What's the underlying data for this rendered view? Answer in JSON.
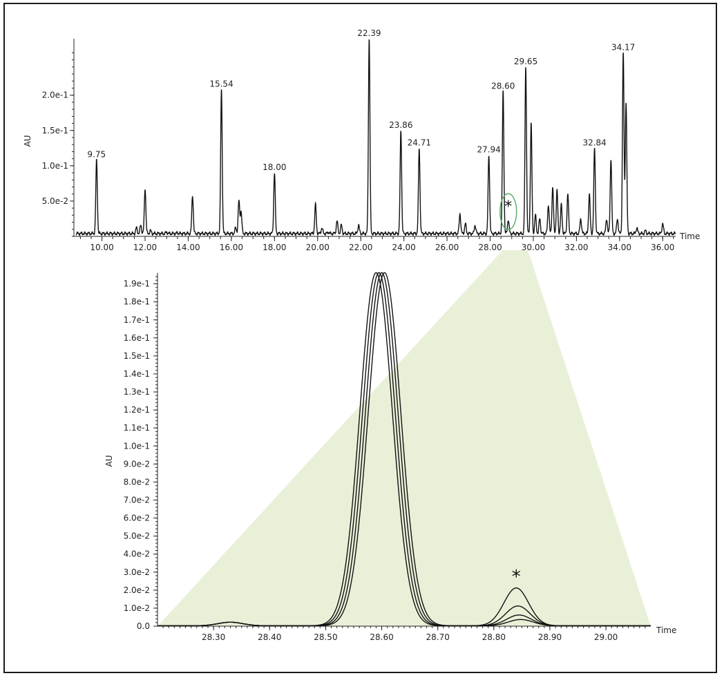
{
  "chart_data": [
    {
      "type": "line",
      "xlabel": "Time",
      "ylabel": "AU",
      "xlim": [
        8.7,
        36.6
      ],
      "ylim": [
        0,
        0.28
      ],
      "xticks": [
        10,
        12,
        14,
        16,
        18,
        20,
        22,
        24,
        26,
        28,
        30,
        32,
        34,
        36
      ],
      "xtick_labels": [
        "10.00",
        "12.00",
        "14.00",
        "16.00",
        "18.00",
        "20.00",
        "22.00",
        "24.00",
        "26.00",
        "28.00",
        "30.00",
        "32.00",
        "34.00",
        "36.00"
      ],
      "yticks": [
        0.05,
        0.1,
        0.15,
        0.2
      ],
      "ytick_labels": [
        "5.0e-2",
        "1.0e-1",
        "1.5e-1",
        "2.0e-1"
      ],
      "baseline": 0.004,
      "peaks": [
        {
          "x": 9.75,
          "y": 0.108,
          "label": "9.75"
        },
        {
          "x": 11.6,
          "y": 0.012
        },
        {
          "x": 11.8,
          "y": 0.016
        },
        {
          "x": 12.0,
          "y": 0.068
        },
        {
          "x": 12.25,
          "y": 0.008
        },
        {
          "x": 13.0,
          "y": 0.006
        },
        {
          "x": 13.5,
          "y": 0.005
        },
        {
          "x": 14.2,
          "y": 0.058
        },
        {
          "x": 15.54,
          "y": 0.208,
          "label": "15.54"
        },
        {
          "x": 16.2,
          "y": 0.012
        },
        {
          "x": 16.35,
          "y": 0.05
        },
        {
          "x": 16.45,
          "y": 0.035
        },
        {
          "x": 18.0,
          "y": 0.09,
          "label": "18.00"
        },
        {
          "x": 19.9,
          "y": 0.045
        },
        {
          "x": 20.2,
          "y": 0.012
        },
        {
          "x": 20.5,
          "y": 0.006
        },
        {
          "x": 20.9,
          "y": 0.022
        },
        {
          "x": 21.1,
          "y": 0.016
        },
        {
          "x": 21.9,
          "y": 0.016
        },
        {
          "x": 22.39,
          "y": 0.28,
          "label": "22.39"
        },
        {
          "x": 23.86,
          "y": 0.15,
          "label": "23.86"
        },
        {
          "x": 24.71,
          "y": 0.125,
          "label": "24.71"
        },
        {
          "x": 26.6,
          "y": 0.032
        },
        {
          "x": 26.85,
          "y": 0.018
        },
        {
          "x": 27.3,
          "y": 0.016
        },
        {
          "x": 27.94,
          "y": 0.115,
          "label": "27.94"
        },
        {
          "x": 28.6,
          "y": 0.205,
          "label": "28.60"
        },
        {
          "x": 28.84,
          "y": 0.024
        },
        {
          "x": 29.65,
          "y": 0.24,
          "label": "29.65"
        },
        {
          "x": 29.9,
          "y": 0.16
        },
        {
          "x": 30.1,
          "y": 0.03
        },
        {
          "x": 30.3,
          "y": 0.025
        },
        {
          "x": 30.7,
          "y": 0.045
        },
        {
          "x": 30.9,
          "y": 0.07
        },
        {
          "x": 31.1,
          "y": 0.065
        },
        {
          "x": 31.3,
          "y": 0.045
        },
        {
          "x": 31.6,
          "y": 0.06
        },
        {
          "x": 32.2,
          "y": 0.025
        },
        {
          "x": 32.6,
          "y": 0.06
        },
        {
          "x": 32.84,
          "y": 0.125,
          "label": "32.84"
        },
        {
          "x": 33.4,
          "y": 0.025
        },
        {
          "x": 33.6,
          "y": 0.11
        },
        {
          "x": 33.9,
          "y": 0.025
        },
        {
          "x": 34.17,
          "y": 0.26,
          "label": "34.17"
        },
        {
          "x": 34.3,
          "y": 0.19
        },
        {
          "x": 34.8,
          "y": 0.012
        },
        {
          "x": 35.2,
          "y": 0.008
        },
        {
          "x": 36.0,
          "y": 0.018
        }
      ],
      "annotations": [
        {
          "text": "*",
          "x": 28.84,
          "y": 0.045,
          "circled": true,
          "circle_color": "#5fae6e"
        }
      ]
    },
    {
      "type": "line",
      "xlabel": "Time",
      "ylabel": "AU",
      "xlim": [
        28.2,
        29.08
      ],
      "ylim": [
        0,
        0.196
      ],
      "xticks": [
        28.3,
        28.4,
        28.5,
        28.6,
        28.7,
        28.8,
        28.9,
        29.0
      ],
      "xtick_labels": [
        "28.30",
        "28.40",
        "28.50",
        "28.60",
        "28.70",
        "28.80",
        "28.90",
        "29.00"
      ],
      "yticks": [
        0,
        0.01,
        0.02,
        0.03,
        0.04,
        0.05,
        0.06,
        0.07,
        0.08,
        0.09,
        0.1,
        0.11,
        0.12,
        0.13,
        0.14,
        0.15,
        0.16,
        0.17,
        0.18,
        0.19
      ],
      "ytick_labels": [
        "0.0",
        "1.0e-2",
        "2.0e-2",
        "3.0e-2",
        "4.0e-2",
        "5.0e-2",
        "6.0e-2",
        "7.0e-2",
        "8.0e-2",
        "9.0e-2",
        "1.0e-1",
        "1.1e-1",
        "1.2e-1",
        "1.3e-1",
        "1.4e-1",
        "1.5e-1",
        "1.6e-1",
        "1.7e-1",
        "1.8e-1",
        "1.9e-1"
      ],
      "series": [
        {
          "main_peak_x": 28.59,
          "main_peak_y": 0.196,
          "impurity_peak_x": 28.84,
          "impurity_peak_y": 0.021
        },
        {
          "main_peak_x": 28.595,
          "main_peak_y": 0.196,
          "impurity_peak_x": 28.843,
          "impurity_peak_y": 0.011
        },
        {
          "main_peak_x": 28.6,
          "main_peak_y": 0.196,
          "impurity_peak_x": 28.845,
          "impurity_peak_y": 0.006
        },
        {
          "main_peak_x": 28.605,
          "main_peak_y": 0.196,
          "impurity_peak_x": 28.848,
          "impurity_peak_y": 0.0035
        }
      ],
      "minor_peak": {
        "x": 28.33,
        "y": 0.002
      },
      "annotations": [
        {
          "text": "*",
          "x": 28.84,
          "y": 0.028
        }
      ],
      "zoom_fill_color": "#e9f0d8"
    }
  ]
}
